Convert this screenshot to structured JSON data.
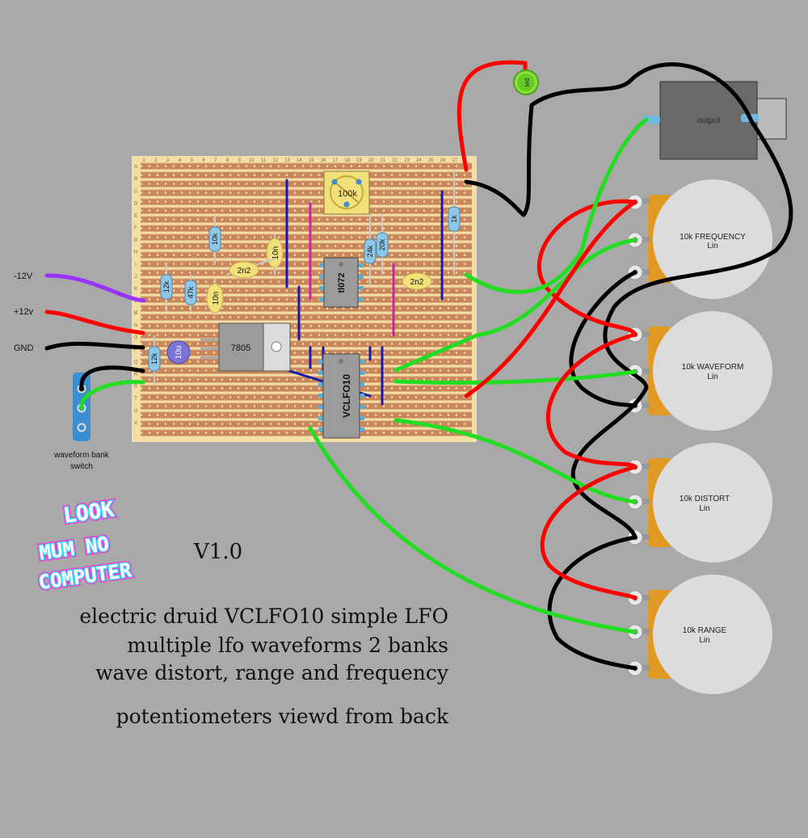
{
  "header": {
    "version": "V1.0",
    "lines": [
      "electric druid VCLFO10 simple LFO",
      "multiple lfo waveforms 2 banks",
      "wave distort, range and frequency",
      "potentiometers viewd from back"
    ]
  },
  "logo": {
    "text": [
      "LOOK",
      "MUM NO",
      "COMPUTER"
    ]
  },
  "power": {
    "neg": "-12V",
    "pos": "+12v",
    "gnd": "GND"
  },
  "switch": {
    "label_line1": "waveform bank",
    "label_line2": "switch"
  },
  "board": {
    "column_numbers": [
      "1",
      "2",
      "3",
      "4",
      "5",
      "6",
      "7",
      "8",
      "9",
      "10",
      "11",
      "12",
      "13",
      "14",
      "15",
      "16",
      "17",
      "18",
      "19",
      "20",
      "21",
      "22",
      "23",
      "24",
      "25",
      "26",
      "27"
    ],
    "row_letters": [
      "A",
      "B",
      "C",
      "D",
      "E",
      "F",
      "G",
      "H",
      "I",
      "J",
      "K",
      "L",
      "M",
      "N",
      "O",
      "P",
      "Q",
      "R",
      "S",
      "T",
      "U",
      "V"
    ]
  },
  "components": {
    "r_10k": "10k",
    "r_12k_a": "12k",
    "r_47k": "47k",
    "r_12k_b": "12k",
    "r_24k": "24k",
    "r_20k": "20k",
    "r_1k": "1k",
    "c_10n_a": "10n",
    "c_2n2_a": "2n2",
    "c_10n_b": "10n",
    "c_2n2_b": "2n2",
    "c_10u": "10u",
    "trimmer": "100k",
    "regulator": "7805",
    "ic_opamp": "tl072",
    "ic_lfo": "VCLFO10",
    "led": "led",
    "output_jack": "output"
  },
  "pots": [
    {
      "name": "10k FREQUENCY",
      "taper": "Lin"
    },
    {
      "name": "10k WAVEFORM",
      "taper": "Lin"
    },
    {
      "name": "10k DISTORT",
      "taper": "Lin"
    },
    {
      "name": "10k RANGE",
      "taper": "Lin"
    }
  ],
  "colors": {
    "background": "#a9a9a9",
    "board": "#f3dfa6",
    "strip": "#c9865a",
    "wire_red": "#ff0000",
    "wire_green": "#22dd22",
    "wire_black": "#000000",
    "wire_purple": "#9933ff",
    "link_blue": "#1a1aa8",
    "link_magenta": "#dd2299"
  }
}
